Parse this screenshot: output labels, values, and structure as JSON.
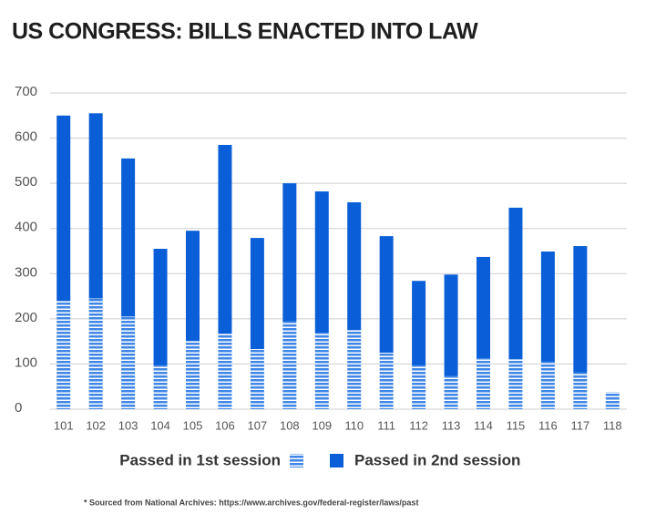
{
  "chart_data": {
    "type": "stacked-bar",
    "title": "US CONGRESS: BILLS ENACTED INTO LAW",
    "categories": [
      "101",
      "102",
      "103",
      "104",
      "105",
      "106",
      "107",
      "108",
      "109",
      "110",
      "111",
      "112",
      "113",
      "114",
      "115",
      "116",
      "117",
      "118"
    ],
    "series": [
      {
        "name": "Passed in 1st session",
        "color": "#3f86e6",
        "hatch": true,
        "values": [
          240,
          245,
          205,
          97,
          151,
          167,
          133,
          194,
          169,
          175,
          125,
          97,
          73,
          113,
          111,
          105,
          81,
          38
        ]
      },
      {
        "name": "Passed in 2nd session",
        "color": "#0a5fd8",
        "hatch": false,
        "values": [
          410,
          410,
          350,
          258,
          244,
          418,
          246,
          306,
          313,
          283,
          258,
          187,
          225,
          224,
          335,
          244,
          280,
          null
        ]
      }
    ],
    "ylim": [
      0,
      700
    ],
    "yticks": [
      0,
      100,
      200,
      300,
      400,
      500,
      600,
      700
    ],
    "grid": true,
    "footnote": "* Sourced from National Archives: https://www.archives.gov/federal-register/laws/past"
  }
}
